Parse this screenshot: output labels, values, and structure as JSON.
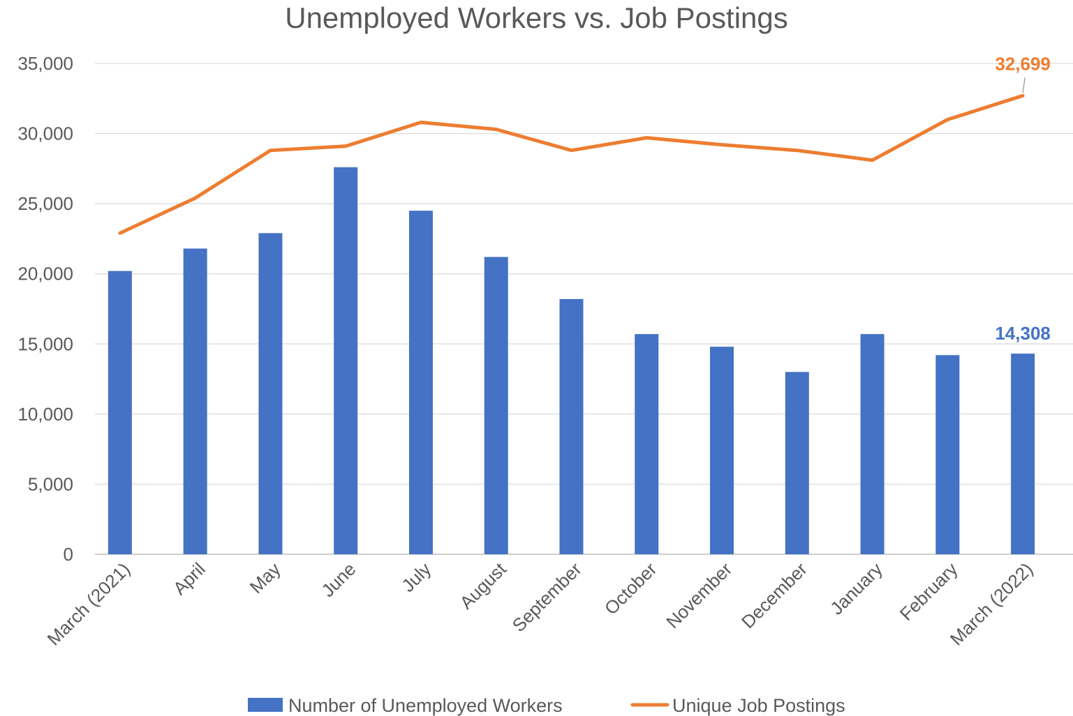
{
  "chart_data": {
    "type": "bar",
    "title": "Unemployed Workers vs. Job Postings",
    "xlabel": "",
    "ylabel": "",
    "ylim": [
      0,
      35000
    ],
    "yticks": [
      0,
      5000,
      10000,
      15000,
      20000,
      25000,
      30000,
      35000
    ],
    "ytick_labels": [
      "0",
      "5,000",
      "10,000",
      "15,000",
      "20,000",
      "25,000",
      "30,000",
      "35,000"
    ],
    "grid": true,
    "legend_position": "bottom",
    "categories": [
      "March (2021)",
      "April",
      "May",
      "June",
      "July",
      "August",
      "September",
      "October",
      "November",
      "December",
      "January",
      "February",
      "March (2022)"
    ],
    "series": [
      {
        "name": "Number of Unemployed Workers",
        "type": "bar",
        "color": "#4472C4",
        "values": [
          20200,
          21800,
          22900,
          27600,
          24500,
          21200,
          18200,
          15700,
          14800,
          13000,
          15700,
          14200,
          14308
        ],
        "data_labels": [
          {
            "index": 12,
            "text": "14,308"
          }
        ]
      },
      {
        "name": "Unique Job Postings",
        "type": "line",
        "color": "#ED7D31",
        "values": [
          22900,
          25400,
          28800,
          29100,
          30800,
          30300,
          28800,
          29700,
          29200,
          28800,
          28100,
          31000,
          32699
        ],
        "data_labels": [
          {
            "index": 12,
            "text": "32,699"
          }
        ]
      }
    ]
  }
}
